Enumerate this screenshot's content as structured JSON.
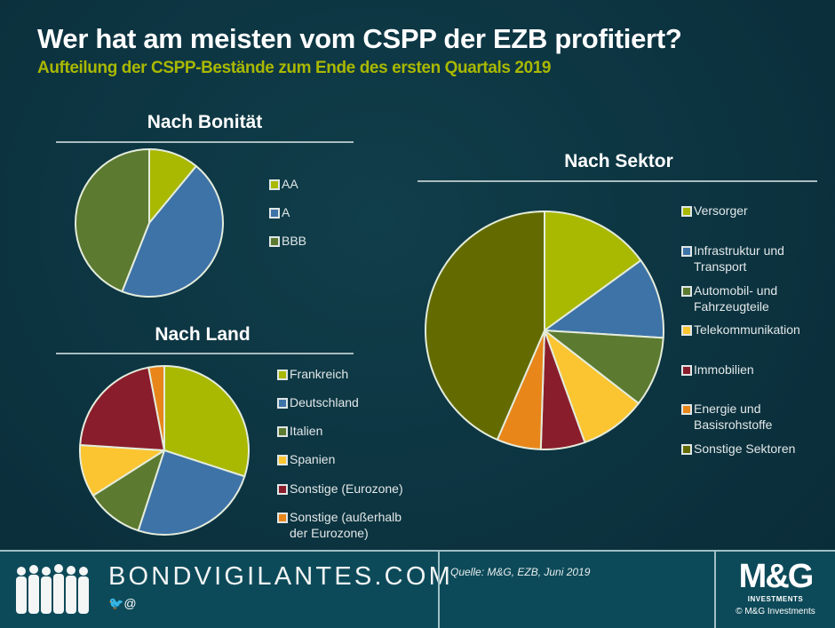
{
  "header": {
    "title": "Wer hat am meisten vom CSPP der EZB profitiert?",
    "subtitle": "Aufteilung der CSPP-Bestände zum Ende des ersten Quartals 2019"
  },
  "chart_data": [
    {
      "type": "pie",
      "title": "Nach Bonität",
      "unit": "%",
      "legend_position": "right",
      "categories": [
        "AA",
        "A",
        "BBB"
      ],
      "values": [
        11,
        45,
        44
      ],
      "colors": [
        "#a9b800",
        "#3e73a8",
        "#5c7a30"
      ]
    },
    {
      "type": "pie",
      "title": "Nach Land",
      "unit": "%",
      "legend_position": "right",
      "categories": [
        "Frankreich",
        "Deutschland",
        "Italien",
        "Spanien",
        "Sonstige (Eurozone)",
        "Sonstige (außerhalb der Eurozone)"
      ],
      "values": [
        30,
        25,
        11,
        10,
        21,
        3
      ],
      "colors": [
        "#a9b800",
        "#3e73a8",
        "#5c7a30",
        "#fbc531",
        "#8a1d2c",
        "#e8861a"
      ]
    },
    {
      "type": "pie",
      "title": "Nach Sektor",
      "unit": "%",
      "legend_position": "right",
      "categories": [
        "Versorger",
        "Infrastruktur und Transport",
        "Automobil- und Fahrzeugteile",
        "Telekommunikation",
        "Immobilien",
        "Energie und Basisrohstoffe",
        "Sonstige Sektoren"
      ],
      "values": [
        15,
        11,
        9.5,
        9,
        6,
        6,
        43.5
      ],
      "colors": [
        "#a9b800",
        "#3e73a8",
        "#5c7a30",
        "#fbc531",
        "#8a1d2c",
        "#e8861a",
        "#636b00"
      ]
    }
  ],
  "legend_lines": {
    "bonitaet": [
      [
        "AA"
      ],
      [
        "A"
      ],
      [
        "BBB"
      ]
    ],
    "land": [
      [
        "Frankreich"
      ],
      [
        "Deutschland"
      ],
      [
        "Italien"
      ],
      [
        "Spanien"
      ],
      [
        "Sonstige (Eurozone)"
      ],
      [
        "Sonstige (außerhalb",
        "der Eurozone)"
      ]
    ],
    "sektor": [
      [
        "Versorger"
      ],
      [
        "Infrastruktur und",
        "Transport"
      ],
      [
        "Automobil- und",
        "Fahrzeugteile"
      ],
      [
        "Telekommunikation"
      ],
      [
        "Immobilien"
      ],
      [
        "Energie und",
        "Basisrohstoffe"
      ],
      [
        "Sonstige Sektoren"
      ]
    ]
  },
  "footer": {
    "brand": "BONDVIGILANTES.COM",
    "social": "🐦@",
    "source": "Quelle: M&G, EZB, Juni 2019",
    "logo_text": "M&G",
    "logo_subtext": "INVESTMENTS",
    "copyright": "© M&G Investments"
  }
}
